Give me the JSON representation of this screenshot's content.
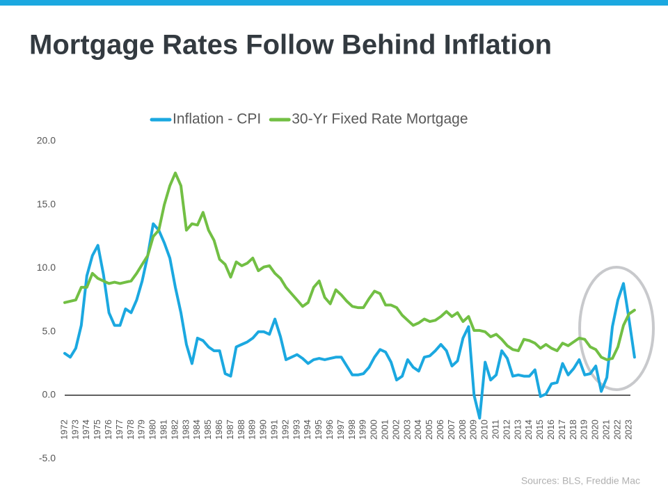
{
  "chart_data": {
    "type": "line",
    "title": "Mortgage Rates Follow Behind Inflation",
    "source": "Sources: BLS, Freddie Mac",
    "categories": [
      "1972",
      null,
      "1973",
      null,
      "1974",
      null,
      "1975",
      null,
      "1976",
      null,
      "1977",
      null,
      "1978",
      null,
      "1979",
      null,
      "1980",
      null,
      "1981",
      null,
      "1982",
      null,
      "1983",
      null,
      "1984",
      null,
      "1985",
      null,
      "1986",
      null,
      "1987",
      null,
      "1988",
      null,
      "1989",
      null,
      "1990",
      null,
      "1991",
      null,
      "1992",
      null,
      "1993",
      null,
      "1994",
      null,
      "1995",
      null,
      "1996",
      null,
      "1997",
      null,
      "1998",
      null,
      "1999",
      null,
      "2000",
      null,
      "2001",
      null,
      "2002",
      null,
      "2003",
      null,
      "2004",
      null,
      "2005",
      null,
      "2006",
      null,
      "2007",
      null,
      "2008",
      null,
      "2009",
      null,
      "2010",
      null,
      "2011",
      null,
      "2012",
      null,
      "2013",
      null,
      "2014",
      null,
      "2015",
      null,
      "2016",
      null,
      "2017",
      null,
      "2018",
      null,
      "2019",
      null,
      "2020",
      null,
      "2021",
      null,
      "2022",
      null,
      "2023",
      null
    ],
    "series": [
      {
        "name": "Inflation - CPI",
        "color": "#1ba8e0",
        "values": [
          3.3,
          3.0,
          3.7,
          5.5,
          9.4,
          11.0,
          11.8,
          9.5,
          6.5,
          5.5,
          5.5,
          6.8,
          6.5,
          7.5,
          9.0,
          11.0,
          13.5,
          13.0,
          12.0,
          10.8,
          8.5,
          6.5,
          4.0,
          2.5,
          4.5,
          4.3,
          3.8,
          3.5,
          3.5,
          1.7,
          1.5,
          3.8,
          4.0,
          4.2,
          4.5,
          5.0,
          5.0,
          4.8,
          6.0,
          4.6,
          2.8,
          3.0,
          3.2,
          2.9,
          2.5,
          2.8,
          2.9,
          2.8,
          2.9,
          3.0,
          3.0,
          2.3,
          1.6,
          1.6,
          1.7,
          2.2,
          3.0,
          3.6,
          3.4,
          2.6,
          1.2,
          1.5,
          2.8,
          2.2,
          1.9,
          3.0,
          3.1,
          3.5,
          4.0,
          3.5,
          2.3,
          2.7,
          4.5,
          5.4,
          0.0,
          -1.8,
          2.6,
          1.2,
          1.6,
          3.5,
          2.9,
          1.5,
          1.6,
          1.5,
          1.5,
          2.0,
          -0.1,
          0.1,
          0.9,
          1.0,
          2.5,
          1.6,
          2.1,
          2.8,
          1.6,
          1.7,
          2.3,
          0.3,
          1.4,
          5.4,
          7.5,
          8.8,
          6.0,
          3.0
        ]
      },
      {
        "name": "30-Yr Fixed Rate Mortgage",
        "color": "#72bf44",
        "values": [
          7.3,
          7.4,
          7.5,
          8.5,
          8.5,
          9.6,
          9.2,
          9.0,
          8.8,
          8.9,
          8.8,
          8.9,
          9.0,
          9.6,
          10.3,
          11.0,
          12.5,
          13.0,
          15.0,
          16.5,
          17.5,
          16.5,
          13.0,
          13.5,
          13.4,
          14.4,
          13.0,
          12.2,
          10.7,
          10.3,
          9.3,
          10.5,
          10.2,
          10.4,
          10.8,
          9.8,
          10.1,
          10.2,
          9.6,
          9.2,
          8.5,
          8.0,
          7.5,
          7.0,
          7.3,
          8.5,
          9.0,
          7.7,
          7.2,
          8.3,
          7.9,
          7.4,
          7.0,
          6.9,
          6.9,
          7.6,
          8.2,
          8.0,
          7.1,
          7.1,
          6.9,
          6.3,
          5.9,
          5.5,
          5.7,
          6.0,
          5.8,
          5.9,
          6.2,
          6.6,
          6.2,
          6.5,
          5.8,
          6.2,
          5.1,
          5.1,
          5.0,
          4.6,
          4.8,
          4.4,
          3.9,
          3.6,
          3.5,
          4.4,
          4.3,
          4.1,
          3.7,
          4.0,
          3.7,
          3.5,
          4.1,
          3.9,
          4.2,
          4.5,
          4.4,
          3.8,
          3.6,
          3.0,
          2.8,
          2.9,
          3.8,
          5.5,
          6.4,
          6.7
        ]
      }
    ],
    "ylim": [
      -5,
      20
    ],
    "yticks": [
      {
        "value": -5,
        "label": "-5.0"
      },
      {
        "value": 0,
        "label": "0.0"
      },
      {
        "value": 5,
        "label": "5.0"
      },
      {
        "value": 10,
        "label": "10.0"
      },
      {
        "value": 15,
        "label": "15.0"
      },
      {
        "value": 20,
        "label": "20.0"
      }
    ],
    "legend": "top"
  }
}
